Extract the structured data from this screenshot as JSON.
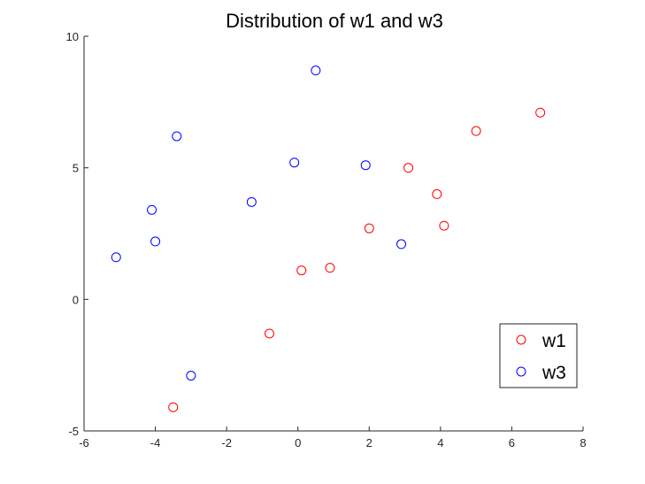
{
  "chart_data": {
    "type": "scatter",
    "title": "Distribution of w1 and w3",
    "xlabel": "",
    "ylabel": "",
    "xlim": [
      -6,
      8
    ],
    "ylim": [
      -5,
      10
    ],
    "xticks": [
      "-6",
      "-4",
      "-2",
      "0",
      "2",
      "4",
      "6",
      "8"
    ],
    "yticks": [
      "-5",
      "0",
      "5",
      "10"
    ],
    "grid": false,
    "legend_position": "bottom-right",
    "marker": "open-circle",
    "series": [
      {
        "name": "w1",
        "color": "#ff0000",
        "points": [
          {
            "x": 0.1,
            "y": 1.1
          },
          {
            "x": 6.8,
            "y": 7.1
          },
          {
            "x": -3.5,
            "y": -4.1
          },
          {
            "x": 2.0,
            "y": 2.7
          },
          {
            "x": 4.1,
            "y": 2.8
          },
          {
            "x": 3.1,
            "y": 5.0
          },
          {
            "x": -0.8,
            "y": -1.3
          },
          {
            "x": 0.9,
            "y": 1.2
          },
          {
            "x": 5.0,
            "y": 6.4
          },
          {
            "x": 3.9,
            "y": 4.0
          }
        ]
      },
      {
        "name": "w3",
        "color": "#0000ff",
        "points": [
          {
            "x": -3.0,
            "y": -2.9
          },
          {
            "x": 0.5,
            "y": 8.7
          },
          {
            "x": 2.9,
            "y": 2.1
          },
          {
            "x": -0.1,
            "y": 5.2
          },
          {
            "x": -4.0,
            "y": 2.2
          },
          {
            "x": -1.3,
            "y": 3.7
          },
          {
            "x": -3.4,
            "y": 6.2
          },
          {
            "x": -4.1,
            "y": 3.4
          },
          {
            "x": -5.1,
            "y": 1.6
          },
          {
            "x": 1.9,
            "y": 5.1
          }
        ]
      }
    ]
  }
}
